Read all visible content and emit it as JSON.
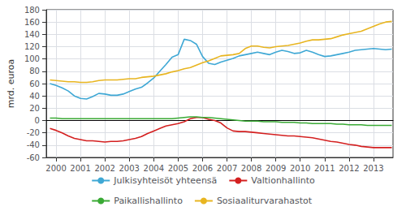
{
  "chart_data": {
    "type": "line",
    "ylabel": "mrd. euroa",
    "x": [
      1999.75,
      2000,
      2000.25,
      2000.5,
      2000.75,
      2001,
      2001.25,
      2001.5,
      2001.75,
      2002,
      2002.25,
      2002.5,
      2002.75,
      2003,
      2003.25,
      2003.5,
      2003.75,
      2004,
      2004.25,
      2004.5,
      2004.75,
      2005,
      2005.25,
      2005.5,
      2005.75,
      2006,
      2006.25,
      2006.5,
      2006.75,
      2007,
      2007.25,
      2007.5,
      2007.75,
      2008,
      2008.25,
      2008.5,
      2008.75,
      2009,
      2009.25,
      2009.5,
      2009.75,
      2010,
      2010.25,
      2010.5,
      2010.75,
      2011,
      2011.25,
      2011.5,
      2011.75,
      2012,
      2012.25,
      2012.5,
      2012.75,
      2013,
      2013.25,
      2013.5,
      2013.75
    ],
    "series": [
      {
        "name": "Julkisyhteisöt yhteensä",
        "color": "#3fa8d5",
        "values": [
          60,
          57,
          53,
          48,
          40,
          36,
          35,
          39,
          44,
          43,
          41,
          41,
          43,
          47,
          51,
          54,
          61,
          69,
          80,
          91,
          103,
          107,
          132,
          130,
          124,
          104,
          93,
          91,
          95,
          98,
          101,
          105,
          107,
          109,
          111,
          109,
          107,
          111,
          114,
          112,
          109,
          110,
          114,
          111,
          107,
          104,
          105,
          107,
          109,
          111,
          114,
          115,
          116,
          117,
          116,
          115,
          116
        ]
      },
      {
        "name": "Valtionhallinto",
        "color": "#d42020",
        "values": [
          -13,
          -16,
          -20,
          -25,
          -29,
          -31,
          -33,
          -33,
          -34,
          -35,
          -34,
          -34,
          -33,
          -31,
          -29,
          -26,
          -21,
          -17,
          -13,
          -9,
          -7,
          -5,
          -2,
          3,
          5,
          5,
          2,
          0,
          -4,
          -12,
          -17,
          -18,
          -18,
          -19,
          -20,
          -21,
          -22,
          -23,
          -24,
          -25,
          -25,
          -26,
          -27,
          -28,
          -30,
          -32,
          -34,
          -35,
          -37,
          -39,
          -40,
          -42,
          -43,
          -44,
          -44,
          -44,
          -44
        ]
      },
      {
        "name": "Paikallishallinto",
        "color": "#3aaa35",
        "values": [
          4,
          4,
          3,
          3,
          3,
          3,
          3,
          3,
          3,
          3,
          3,
          3,
          3,
          3,
          3,
          3,
          3,
          3,
          3,
          3,
          3,
          4,
          5,
          6,
          6,
          5,
          5,
          4,
          3,
          2,
          1,
          0,
          -1,
          -1,
          -1,
          -2,
          -2,
          -2,
          -3,
          -3,
          -3,
          -4,
          -4,
          -5,
          -5,
          -5,
          -5,
          -6,
          -6,
          -7,
          -7,
          -7,
          -8,
          -8,
          -8,
          -8,
          -8
        ]
      },
      {
        "name": "Sosiaaliturvarahastot",
        "color": "#e8b520",
        "values": [
          66,
          65,
          64,
          63,
          63,
          62,
          62,
          63,
          65,
          66,
          66,
          66,
          67,
          68,
          68,
          70,
          71,
          72,
          74,
          76,
          79,
          81,
          84,
          86,
          90,
          94,
          97,
          101,
          105,
          106,
          107,
          109,
          117,
          121,
          121,
          119,
          118,
          120,
          121,
          122,
          124,
          126,
          129,
          131,
          131,
          132,
          133,
          136,
          139,
          141,
          143,
          145,
          149,
          153,
          157,
          160,
          161
        ]
      }
    ],
    "xlim": [
      1999.6,
      2013.8
    ],
    "xticks": [
      2000,
      2001,
      2002,
      2003,
      2004,
      2005,
      2006,
      2007,
      2008,
      2009,
      2010,
      2011,
      2012,
      2013
    ],
    "ylim": [
      -60,
      180
    ],
    "yticks": [
      -60,
      -40,
      -20,
      0,
      20,
      40,
      60,
      80,
      100,
      120,
      140,
      160,
      180
    ],
    "grid": true,
    "legend": "bottom"
  }
}
